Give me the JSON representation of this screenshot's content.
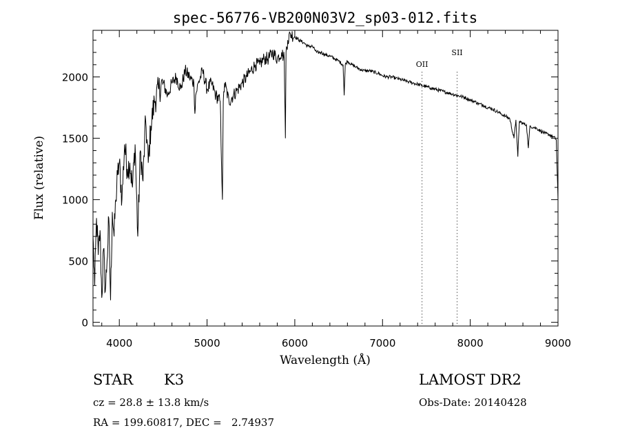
{
  "chart_data": {
    "type": "line",
    "title": "spec-56776-VB200N03V2_sp03-012.fits",
    "xlabel": "Wavelength (Å)",
    "ylabel": "Flux (relative)",
    "xlim": [
      3700,
      9000
    ],
    "ylim": [
      -30,
      2380
    ],
    "x_ticks": [
      4000,
      5000,
      6000,
      7000,
      8000,
      9000
    ],
    "x_tick_labels": [
      "4000",
      "5000",
      "6000",
      "7000",
      "8000",
      "9000"
    ],
    "y_ticks": [
      0,
      500,
      1000,
      1500,
      2000
    ],
    "y_tick_labels": [
      "0",
      "500",
      "1000",
      "1500",
      "2000"
    ],
    "grid": false,
    "series": [
      {
        "x": [
          3700,
          3720,
          3740,
          3760,
          3780,
          3800,
          3820,
          3840,
          3860,
          3880,
          3900,
          3920,
          3940,
          3960,
          3980,
          4000,
          4030,
          4060,
          4090,
          4120,
          4150,
          4180,
          4210,
          4240,
          4270,
          4300,
          4330,
          4360,
          4400,
          4450,
          4500,
          4550,
          4600,
          4650,
          4700,
          4750,
          4800,
          4850,
          4861,
          4870,
          4900,
          4950,
          5000,
          5050,
          5100,
          5150,
          5175,
          5185,
          5200,
          5250,
          5300,
          5350,
          5400,
          5450,
          5500,
          5550,
          5600,
          5650,
          5700,
          5750,
          5800,
          5850,
          5880,
          5893,
          5900,
          5920,
          5950,
          6000,
          6050,
          6100,
          6150,
          6200,
          6250,
          6300,
          6350,
          6400,
          6450,
          6500,
          6550,
          6563,
          6575,
          6600,
          6650,
          6700,
          6750,
          6800,
          6850,
          6900,
          6950,
          7000,
          7050,
          7100,
          7150,
          7200,
          7250,
          7300,
          7350,
          7400,
          7450,
          7500,
          7550,
          7600,
          7650,
          7700,
          7750,
          7800,
          7850,
          7900,
          7950,
          8000,
          8050,
          8100,
          8150,
          8200,
          8250,
          8300,
          8350,
          8400,
          8450,
          8498,
          8520,
          8542,
          8560,
          8600,
          8640,
          8662,
          8680,
          8720,
          8760,
          8800,
          8850,
          8900,
          8950,
          8980,
          9000
        ],
        "values": [
          700,
          300,
          850,
          550,
          750,
          200,
          600,
          250,
          500,
          850,
          180,
          900,
          700,
          1000,
          1200,
          1300,
          1000,
          1450,
          1250,
          1300,
          1100,
          1450,
          700,
          1400,
          1150,
          1650,
          1300,
          1600,
          1800,
          1900,
          1950,
          1850,
          1950,
          2000,
          1900,
          2050,
          2000,
          1950,
          1700,
          1850,
          1950,
          2050,
          1900,
          1950,
          1850,
          1800,
          1000,
          1800,
          1950,
          1800,
          1850,
          1900,
          1950,
          2000,
          2050,
          2100,
          2100,
          2150,
          2150,
          2200,
          2150,
          2200,
          2150,
          1500,
          2200,
          2300,
          2350,
          2330,
          2300,
          2280,
          2250,
          2250,
          2200,
          2200,
          2180,
          2170,
          2150,
          2130,
          2100,
          1850,
          2100,
          2130,
          2100,
          2080,
          2060,
          2050,
          2050,
          2040,
          2030,
          2010,
          2000,
          2000,
          1990,
          1980,
          1970,
          1960,
          1950,
          1940,
          1930,
          1920,
          1910,
          1900,
          1890,
          1880,
          1870,
          1860,
          1850,
          1840,
          1830,
          1810,
          1800,
          1780,
          1770,
          1750,
          1740,
          1720,
          1700,
          1680,
          1660,
          1500,
          1650,
          1350,
          1640,
          1620,
          1610,
          1420,
          1600,
          1590,
          1580,
          1560,
          1540,
          1530,
          1510,
          1490,
          1000
        ]
      }
    ],
    "annotations": [
      {
        "label": "OII",
        "x": 7450
      },
      {
        "label": "SII",
        "x": 7850
      }
    ]
  },
  "info": {
    "object_type": "STAR",
    "subclass": "K3",
    "survey": "LAMOST DR2",
    "redshift": "cz = 28.8 ± 13.8 km/s",
    "obs_date": "Obs-Date: 20140428",
    "coords": "RA = 199.60817, DEC =   2.74937"
  }
}
